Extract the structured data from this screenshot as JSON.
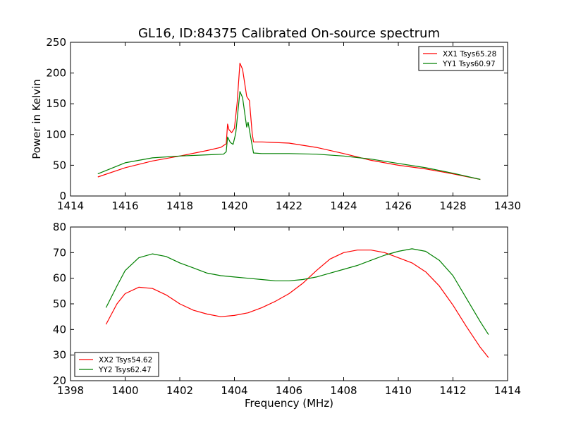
{
  "chart_data": [
    {
      "type": "line",
      "title": "GL16, ID:84375 Calibrated On-source spectrum",
      "xlabel": "",
      "ylabel": "Power in Kelvin",
      "xlim": [
        1414,
        1430
      ],
      "ylim": [
        0,
        250
      ],
      "xticks": [
        "1414",
        "1416",
        "1418",
        "1420",
        "1422",
        "1424",
        "1426",
        "1428",
        "1430"
      ],
      "yticks": [
        "0",
        "50",
        "100",
        "150",
        "200",
        "250"
      ],
      "legend_position": "top-right",
      "grid": false,
      "series": [
        {
          "name": "XX1 Tsys65.28",
          "color": "#ff0000",
          "x": [
            1415,
            1416,
            1417,
            1418,
            1419,
            1419.5,
            1419.7,
            1419.75,
            1419.8,
            1419.9,
            1420.0,
            1420.1,
            1420.2,
            1420.3,
            1420.45,
            1420.55,
            1420.65,
            1420.7,
            1421,
            1422,
            1423,
            1424,
            1425,
            1426,
            1427,
            1428,
            1429
          ],
          "y": [
            31,
            46,
            57,
            65,
            74,
            79,
            85,
            117,
            108,
            103,
            110,
            152,
            216,
            206,
            162,
            155,
            102,
            88,
            88,
            86,
            79,
            69,
            58,
            50,
            44,
            36,
            27
          ]
        },
        {
          "name": "YY1 Tsys60.97",
          "color": "#008000",
          "x": [
            1415,
            1416,
            1417,
            1418,
            1419,
            1419.6,
            1419.7,
            1419.75,
            1419.85,
            1419.95,
            1420.05,
            1420.2,
            1420.3,
            1420.45,
            1420.5,
            1420.6,
            1420.7,
            1421,
            1422,
            1423,
            1424,
            1425,
            1426,
            1427,
            1428,
            1429
          ],
          "y": [
            36,
            54,
            62,
            65,
            67,
            68,
            72,
            96,
            87,
            84,
            102,
            170,
            160,
            112,
            120,
            95,
            70,
            69,
            69,
            68,
            65,
            60,
            53,
            46,
            37,
            27
          ]
        }
      ]
    },
    {
      "type": "line",
      "title": "",
      "xlabel": "Frequency (MHz)",
      "ylabel": "",
      "xlim": [
        1398,
        1414
      ],
      "ylim": [
        20,
        80
      ],
      "xticks": [
        "1398",
        "1400",
        "1402",
        "1404",
        "1406",
        "1408",
        "1410",
        "1412",
        "1414"
      ],
      "yticks": [
        "20",
        "30",
        "40",
        "50",
        "60",
        "70",
        "80"
      ],
      "legend_position": "bottom-left",
      "grid": false,
      "series": [
        {
          "name": "XX2 Tsys54.62",
          "color": "#ff0000",
          "x": [
            1399.3,
            1399.7,
            1400.0,
            1400.5,
            1401.0,
            1401.5,
            1402,
            1402.5,
            1403,
            1403.5,
            1404,
            1404.5,
            1405,
            1405.5,
            1406,
            1406.5,
            1407,
            1407.5,
            1408,
            1408.5,
            1409,
            1409.5,
            1410,
            1410.5,
            1411,
            1411.5,
            1412,
            1412.5,
            1413,
            1413.3
          ],
          "y": [
            42,
            50,
            54,
            56.5,
            56,
            53.5,
            50,
            47.5,
            46,
            45,
            45.5,
            46.5,
            48.5,
            51,
            54,
            58,
            63,
            67.5,
            70,
            71,
            71,
            70,
            68,
            66,
            62.5,
            57,
            49.5,
            41,
            33,
            29
          ]
        },
        {
          "name": "YY2 Tsys62.47",
          "color": "#008000",
          "x": [
            1399.3,
            1399.7,
            1400.0,
            1400.5,
            1401.0,
            1401.5,
            1402,
            1402.5,
            1403,
            1403.5,
            1404,
            1404.5,
            1405,
            1405.5,
            1406,
            1406.5,
            1407,
            1407.5,
            1408,
            1408.5,
            1409,
            1409.5,
            1410,
            1410.5,
            1411,
            1411.5,
            1412,
            1412.5,
            1413,
            1413.3
          ],
          "y": [
            48.5,
            57,
            63,
            68,
            69.5,
            68.5,
            66,
            64,
            62,
            61,
            60.5,
            60,
            59.5,
            59,
            59,
            59.5,
            60.5,
            62,
            63.5,
            65,
            67,
            69,
            70.5,
            71.5,
            70.5,
            67,
            61,
            52,
            43,
            38
          ]
        }
      ]
    }
  ]
}
